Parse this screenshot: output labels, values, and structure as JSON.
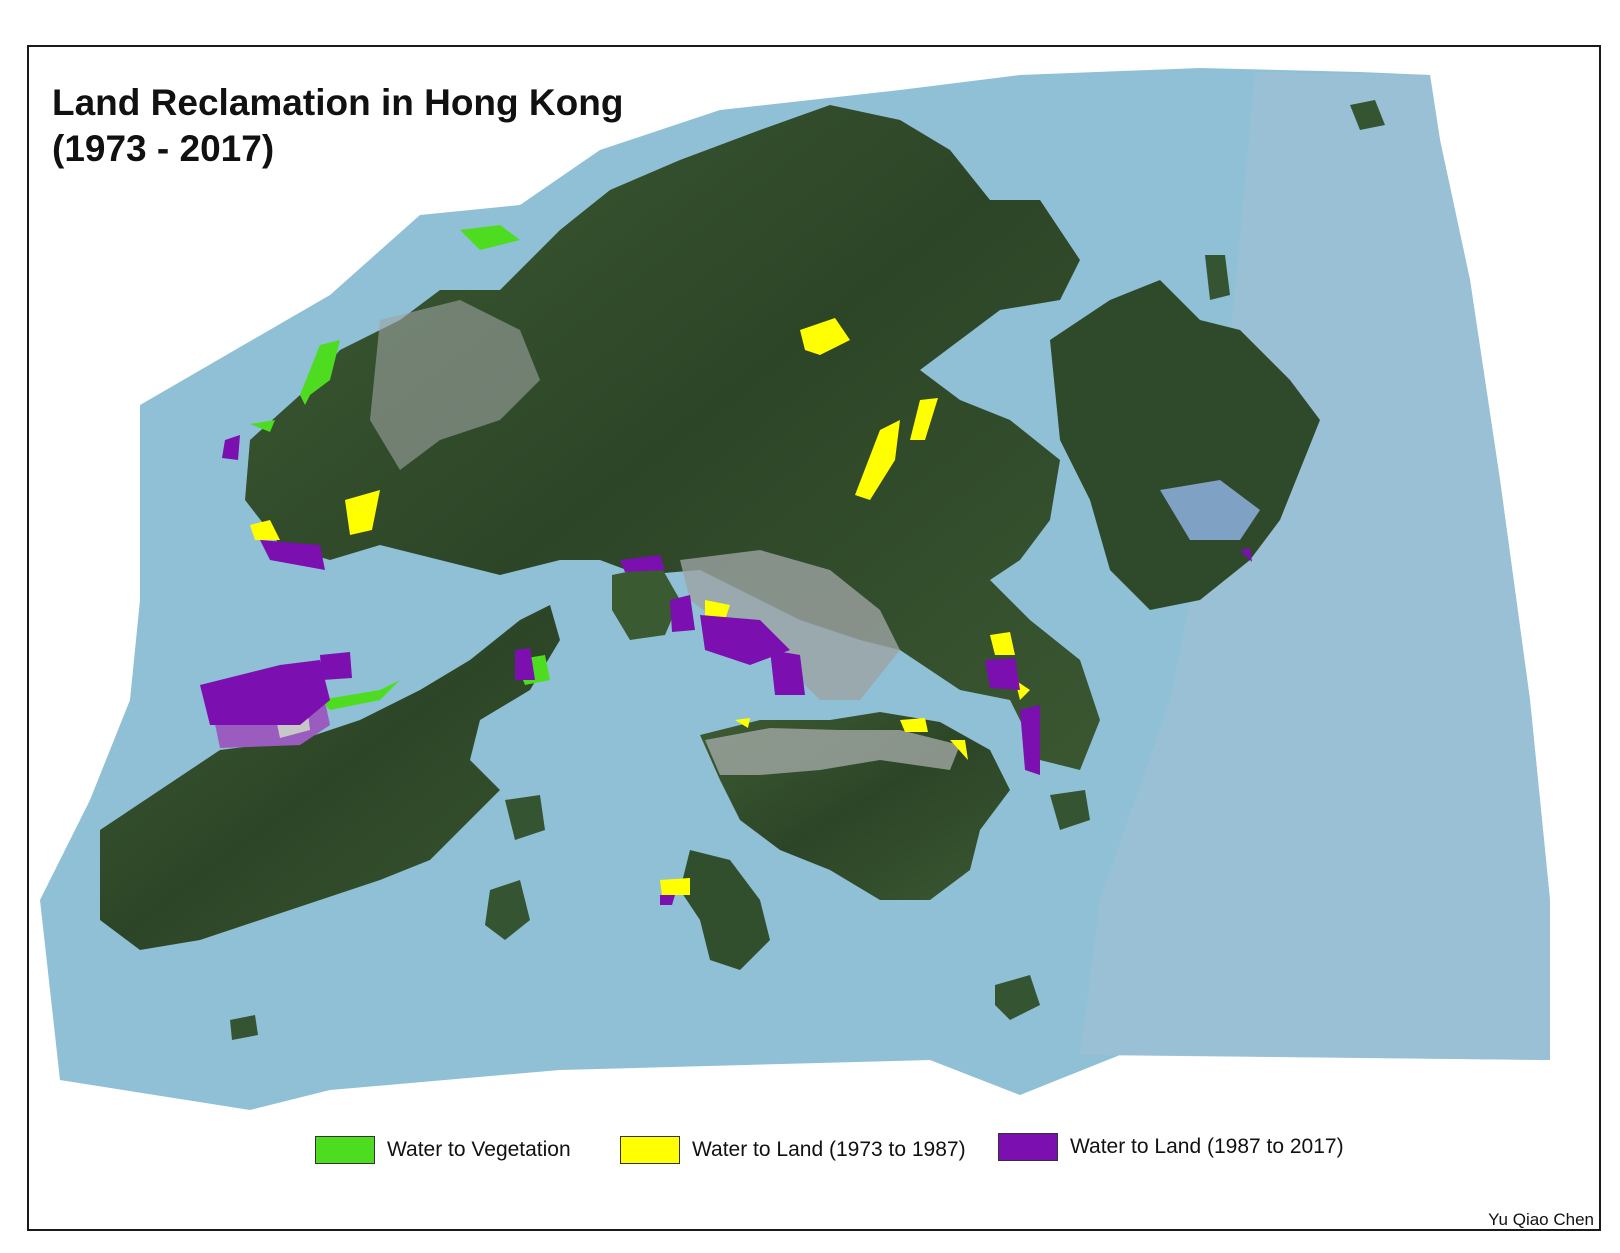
{
  "title": {
    "line1": "Land Reclamation in Hong Kong",
    "line2": "(1973 - 2017)"
  },
  "legend": [
    {
      "label": "Water to Vegetation",
      "color": "#4ddc1f"
    },
    {
      "label": "Water to Land (1973 to 1987)",
      "color": "#ffff00"
    },
    {
      "label": "Water to Land (1987 to 2017)",
      "color": "#7b0fb0"
    }
  ],
  "credit": "Yu Qiao Chen",
  "colors": {
    "sea": "#8fc0d6",
    "sea_east": "#9bbfd5",
    "land_dark": "#2f4a2a",
    "land_mid": "#4a6b3c",
    "urban": "#9ca3a2"
  }
}
